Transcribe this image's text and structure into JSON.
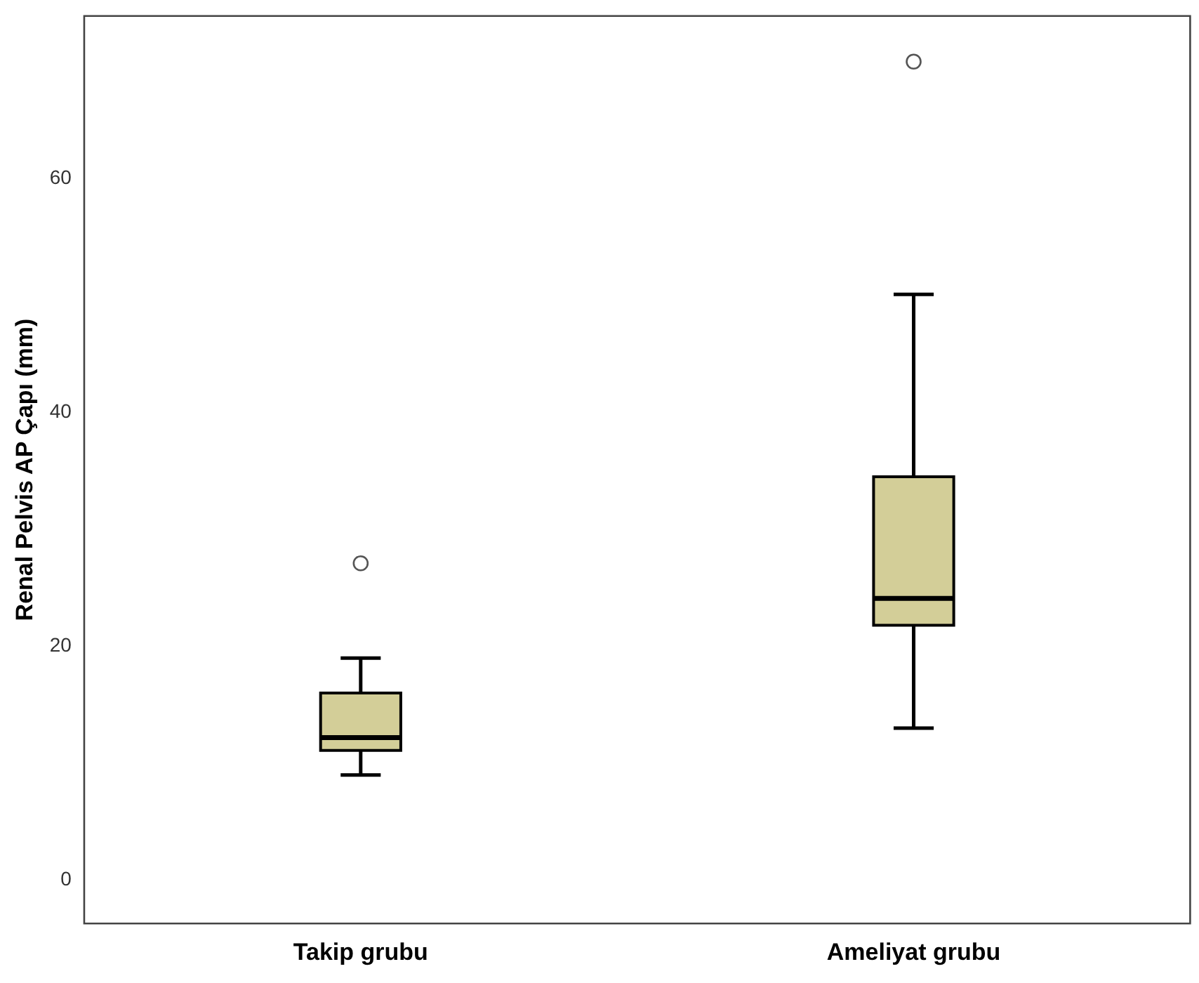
{
  "chart_data": {
    "type": "box",
    "ylabel": "Renal Pelvis AP Çapı (mm)",
    "categories": [
      "Takip grubu",
      "Ameliyat grubu"
    ],
    "color": "#d3ce98",
    "boxes": [
      {
        "low": 9.0,
        "q1": 11.1,
        "median": 12.2,
        "q3": 16.0,
        "high": 19.0,
        "outliers": [
          27.1
        ]
      },
      {
        "low": 13.0,
        "q1": 21.8,
        "median": 24.1,
        "q3": 34.5,
        "high": 50.1,
        "outliers": [
          70.0
        ]
      }
    ],
    "ylim": [
      -3.7,
      73.9
    ],
    "yticks": [
      0,
      20,
      40,
      60
    ]
  }
}
